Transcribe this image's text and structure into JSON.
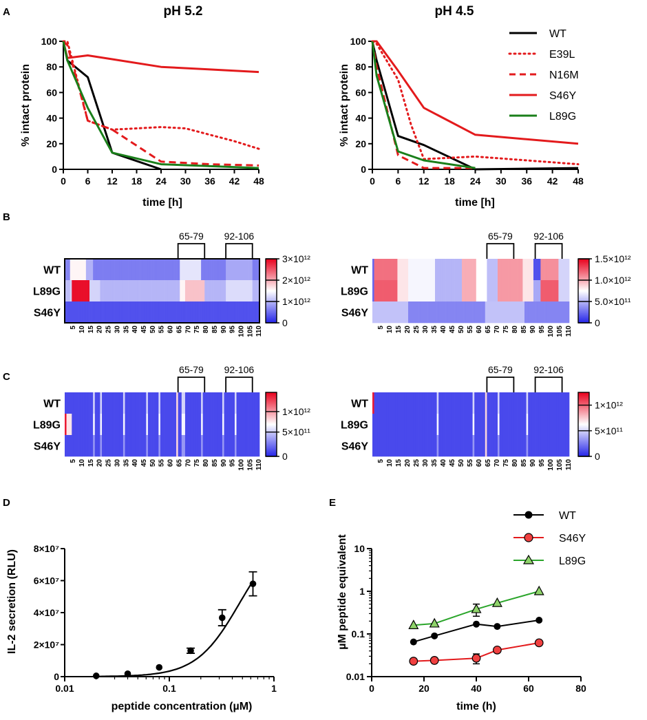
{
  "panel_labels": {
    "A": "A",
    "B": "B",
    "C": "C",
    "D": "D",
    "E": "E"
  },
  "colors": {
    "wt": "#000000",
    "red": "#e31a1c",
    "green": "#1a7f1a",
    "eGreen": "#8fd46a",
    "eRed": "#f04040"
  },
  "chart_data": [
    {
      "id": "A1",
      "type": "line",
      "title": "pH 5.2",
      "xlabel": "time [h]",
      "ylabel": "% intact protein",
      "xlim": [
        0,
        48
      ],
      "ylim": [
        0,
        100
      ],
      "xticks": [
        0,
        6,
        12,
        18,
        24,
        30,
        36,
        42,
        48
      ],
      "yticks": [
        0,
        20,
        40,
        60,
        80,
        100
      ],
      "series": [
        {
          "name": "WT",
          "style": "solid",
          "color": "#000000",
          "x": [
            0,
            1,
            6,
            12,
            24
          ],
          "y": [
            100,
            85,
            72,
            13,
            0
          ]
        },
        {
          "name": "E39L",
          "style": "dotted",
          "color": "#e31a1c",
          "x": [
            0,
            1,
            6,
            12,
            18,
            24,
            30,
            36,
            42,
            48
          ],
          "y": [
            100,
            100,
            38,
            31,
            32,
            33,
            32,
            27,
            22,
            16
          ]
        },
        {
          "name": "N16M",
          "style": "dashed",
          "color": "#e31a1c",
          "x": [
            0,
            1,
            6,
            12,
            24,
            36,
            48
          ],
          "y": [
            100,
            97,
            38,
            31,
            6,
            4,
            3
          ]
        },
        {
          "name": "S46Y",
          "style": "solid",
          "color": "#e31a1c",
          "x": [
            0,
            1,
            6,
            12,
            24,
            36,
            48
          ],
          "y": [
            100,
            87,
            89,
            86,
            80,
            78,
            76
          ]
        },
        {
          "name": "L89G",
          "style": "solid",
          "color": "#1a7f1a",
          "x": [
            0,
            1,
            6,
            12,
            24,
            48
          ],
          "y": [
            100,
            85,
            48,
            13,
            4,
            1
          ]
        }
      ]
    },
    {
      "id": "A2",
      "type": "line",
      "title": "pH 4.5",
      "xlabel": "time [h]",
      "ylabel": "% intact protein",
      "xlim": [
        0,
        48
      ],
      "ylim": [
        0,
        100
      ],
      "xticks": [
        0,
        6,
        12,
        18,
        24,
        30,
        36,
        42,
        48
      ],
      "yticks": [
        0,
        20,
        40,
        60,
        80,
        100
      ],
      "legend": [
        "WT",
        "E39L",
        "N16M",
        "S46Y",
        "L89G"
      ],
      "series": [
        {
          "name": "WT",
          "style": "solid",
          "color": "#000000",
          "x": [
            0,
            1,
            6,
            12,
            24,
            48
          ],
          "y": [
            100,
            85,
            26,
            19,
            0,
            1
          ]
        },
        {
          "name": "E39L",
          "style": "dotted",
          "color": "#e31a1c",
          "x": [
            0,
            1,
            6,
            9,
            12,
            24,
            48
          ],
          "y": [
            100,
            98,
            70,
            35,
            8,
            10,
            4
          ]
        },
        {
          "name": "N16M",
          "style": "dashed",
          "color": "#e31a1c",
          "x": [
            0,
            1,
            6,
            12,
            24
          ],
          "y": [
            100,
            80,
            11,
            1,
            1
          ]
        },
        {
          "name": "S46Y",
          "style": "solid",
          "color": "#e31a1c",
          "x": [
            0,
            1,
            6,
            12,
            24,
            48
          ],
          "y": [
            100,
            100,
            77,
            48,
            27,
            20
          ]
        },
        {
          "name": "L89G",
          "style": "solid",
          "color": "#1a7f1a",
          "x": [
            0,
            1,
            6,
            12,
            24
          ],
          "y": [
            100,
            73,
            14,
            7,
            1
          ]
        }
      ]
    },
    {
      "id": "B1",
      "type": "heatmap",
      "rows": [
        "WT",
        "L89G",
        "S46Y"
      ],
      "residues": 110,
      "xticks": [
        5,
        10,
        15,
        20,
        25,
        30,
        35,
        40,
        45,
        50,
        55,
        60,
        65,
        70,
        75,
        80,
        85,
        90,
        95,
        100,
        105,
        110
      ],
      "brackets": [
        "65-79",
        "92-106"
      ],
      "colorbar": [
        "3×10¹²",
        "2×10¹²",
        "1×10¹²",
        "0"
      ]
    },
    {
      "id": "B2",
      "type": "heatmap",
      "rows": [
        "WT",
        "L89G",
        "S46Y"
      ],
      "residues": 110,
      "xticks": [
        5,
        10,
        15,
        20,
        25,
        30,
        35,
        40,
        45,
        50,
        55,
        60,
        65,
        70,
        75,
        80,
        85,
        90,
        95,
        100,
        105,
        110
      ],
      "brackets": [
        "65-79",
        "92-106"
      ],
      "colorbar": [
        "1.5×10¹²",
        "1.0×10¹²",
        "5.0×10¹¹",
        "0"
      ]
    },
    {
      "id": "C1",
      "type": "heatmap",
      "rows": [
        "WT",
        "L89G",
        "S46Y"
      ],
      "residues": 110,
      "xticks": [
        5,
        10,
        15,
        20,
        25,
        30,
        35,
        40,
        45,
        50,
        55,
        60,
        65,
        70,
        75,
        80,
        85,
        90,
        95,
        100,
        105,
        110
      ],
      "brackets": [
        "65-79",
        "92-106"
      ],
      "colorbar": [
        "1×10¹²",
        "5×10¹¹",
        "0"
      ]
    },
    {
      "id": "C2",
      "type": "heatmap",
      "rows": [
        "WT",
        "L89G",
        "S46Y"
      ],
      "residues": 110,
      "xticks": [
        5,
        10,
        15,
        20,
        25,
        30,
        35,
        40,
        45,
        50,
        55,
        60,
        65,
        70,
        75,
        80,
        85,
        90,
        95,
        100,
        105,
        110
      ],
      "brackets": [
        "65-79",
        "92-106"
      ],
      "colorbar": [
        "1×10¹²",
        "5×10¹¹",
        "0"
      ]
    },
    {
      "id": "D",
      "type": "scatter",
      "xscale": "log",
      "xlabel": "peptide concentration (µM)",
      "ylabel": "IL-2 secretion (RLU)",
      "xlim": [
        0.01,
        1
      ],
      "ylim": [
        0,
        80000000.0
      ],
      "xticks": [
        "0.01",
        "0.1",
        "1"
      ],
      "yticks": [
        "0",
        "2×10⁷",
        "4×10⁷",
        "6×10⁷",
        "8×10⁷"
      ],
      "x": [
        0.02,
        0.04,
        0.08,
        0.16,
        0.32,
        0.63
      ],
      "y": [
        500000,
        1800000,
        5800000,
        16200000,
        36800000,
        58000000
      ],
      "err": [
        300000,
        400000,
        600000,
        1600000,
        5000000,
        7500000
      ]
    },
    {
      "id": "E",
      "type": "line",
      "yscale": "log",
      "xlabel": "time (h)",
      "ylabel": "µM peptide equivalent",
      "xlim": [
        0,
        80
      ],
      "ylim": [
        0.01,
        10
      ],
      "xticks": [
        "0",
        "20",
        "40",
        "60",
        "80"
      ],
      "yticks": [
        "0.01",
        "0.1",
        "1",
        "10"
      ],
      "legend": [
        "WT",
        "S46Y",
        "L89G"
      ],
      "series": [
        {
          "name": "WT",
          "marker": "circle",
          "x": [
            16,
            24,
            40,
            48,
            64
          ],
          "y": [
            0.065,
            0.09,
            0.17,
            0.15,
            0.21
          ]
        },
        {
          "name": "S46Y",
          "marker": "circle",
          "x": [
            16,
            24,
            40,
            48,
            64
          ],
          "y": [
            0.023,
            0.024,
            0.027,
            0.042,
            0.062
          ]
        },
        {
          "name": "L89G",
          "marker": "triangle",
          "x": [
            16,
            24,
            40,
            48,
            64
          ],
          "y": [
            0.16,
            0.175,
            0.38,
            0.53,
            1.0
          ]
        }
      ],
      "err": {
        "S46Y": [
          0,
          0,
          0.007,
          0,
          0
        ],
        "L89G": [
          0,
          0,
          0.12,
          0,
          0
        ]
      }
    }
  ]
}
